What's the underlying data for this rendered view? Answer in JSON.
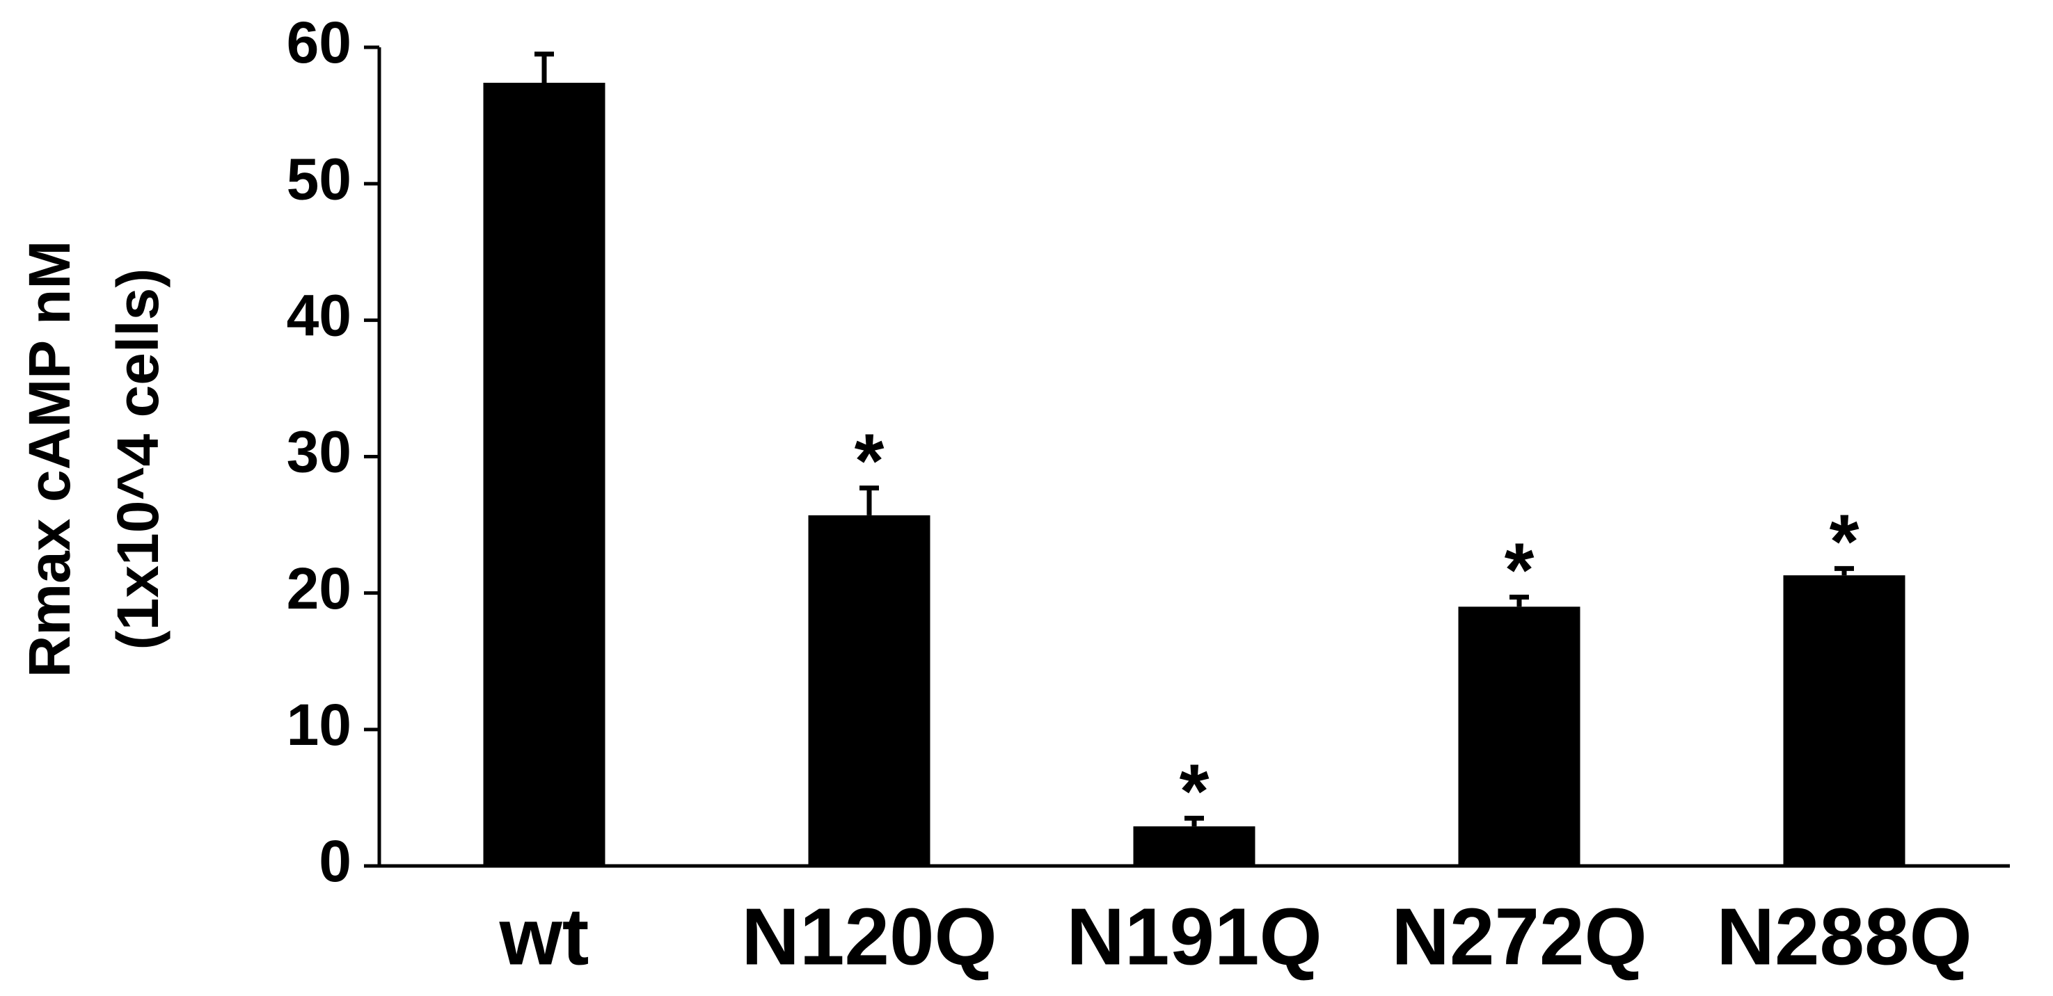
{
  "chart_data": {
    "type": "bar",
    "ylabel": [
      "Rmax cAMP nM",
      "(1x10^4 cells)"
    ],
    "categories": [
      "wt",
      "N120Q",
      "N191Q",
      "N272Q",
      "N288Q"
    ],
    "values": [
      57.4,
      25.7,
      2.9,
      19.0,
      21.3
    ],
    "errors": [
      2.1,
      2.0,
      0.6,
      0.7,
      0.5
    ],
    "annotations": [
      null,
      "*",
      "*",
      "*",
      "*"
    ],
    "color": "#000000",
    "ylim": [
      0,
      60
    ],
    "yticks": [
      0,
      10,
      20,
      30,
      40,
      50,
      60
    ]
  }
}
